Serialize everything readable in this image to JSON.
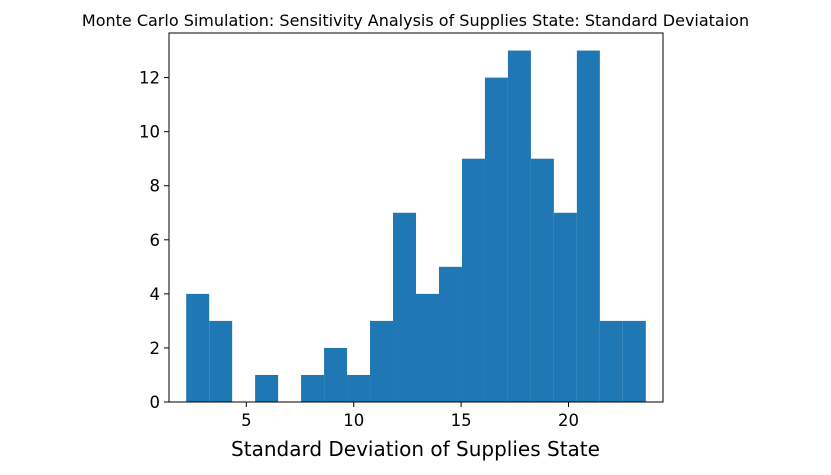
{
  "chart_data": {
    "type": "bar",
    "title": "Monte Carlo Simulation: Sensitivity Analysis of Supplies State: Standard Deviataion",
    "xlabel": "Standard Deviation of Supplies State",
    "ylabel": "",
    "xlim": [
      1.4,
      24.4
    ],
    "ylim": [
      0,
      13.65
    ],
    "xticks": [
      5,
      10,
      15,
      20
    ],
    "yticks": [
      0,
      2,
      4,
      6,
      8,
      10,
      12
    ],
    "bin_edges": [
      2.2,
      3.27,
      4.34,
      5.41,
      6.48,
      7.55,
      8.62,
      9.69,
      10.76,
      11.83,
      12.9,
      13.97,
      15.04,
      16.11,
      17.18,
      18.25,
      19.32,
      20.39,
      21.46,
      22.53,
      23.6
    ],
    "values": [
      4,
      3,
      0,
      1,
      0,
      1,
      2,
      1,
      3,
      7,
      4,
      5,
      9,
      12,
      13,
      9,
      7,
      13,
      3,
      3
    ],
    "bar_color": "#1f77b4",
    "grid": false,
    "legend": "none"
  }
}
